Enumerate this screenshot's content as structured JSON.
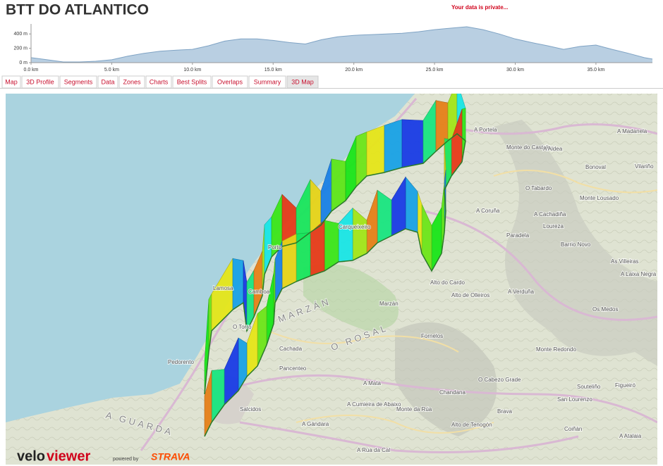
{
  "header": {
    "title": "BTT DO ATLANTICO",
    "privacy_note": "Your data is private..."
  },
  "chart_data": {
    "type": "area",
    "x": [
      0,
      1,
      2,
      3,
      4,
      5,
      6,
      7,
      8,
      9,
      10,
      11,
      12,
      13,
      14,
      15,
      16,
      17,
      18,
      19,
      20,
      21,
      22,
      23,
      24,
      25,
      26,
      27,
      28,
      29,
      30,
      31,
      32,
      33,
      34,
      35,
      36,
      37,
      38,
      38.5
    ],
    "values": [
      70,
      40,
      10,
      10,
      20,
      40,
      90,
      130,
      160,
      175,
      185,
      235,
      300,
      330,
      330,
      310,
      280,
      260,
      320,
      360,
      380,
      390,
      400,
      410,
      430,
      460,
      480,
      500,
      460,
      400,
      330,
      280,
      235,
      185,
      225,
      245,
      185,
      130,
      70,
      50
    ],
    "color": "#b9cfe2",
    "line_color": "#7fa3c4",
    "xlim": [
      0,
      38.5
    ],
    "ylim": [
      0,
      500
    ],
    "xticks": [
      {
        "value": 0,
        "label": "0.0 km"
      },
      {
        "value": 5,
        "label": "5.0 km"
      },
      {
        "value": 10,
        "label": "10.0 km"
      },
      {
        "value": 15,
        "label": "15.0 km"
      },
      {
        "value": 20,
        "label": "20.0 km"
      },
      {
        "value": 25,
        "label": "25.0 km"
      },
      {
        "value": 30,
        "label": "30.0 km"
      },
      {
        "value": 35,
        "label": "35.0 km"
      }
    ],
    "yticks": [
      {
        "value": 0,
        "label": "0 m"
      },
      {
        "value": 200,
        "label": "200 m"
      },
      {
        "value": 400,
        "label": "400 m"
      }
    ]
  },
  "tabs": [
    "Map",
    "3D Profile",
    "Segments",
    "Data",
    "Zones",
    "Charts",
    "Best Splits",
    "Overlaps",
    "Summary",
    "3D Map"
  ],
  "active_tab": 9,
  "map": {
    "labels": [
      "A Portela",
      "Monte do Castelo",
      "A Aldea",
      "A Madanela",
      "Vilariño",
      "Bonoval",
      "O Tabardo",
      "Monte Lousado",
      "A Cachadiña",
      "A Coruña",
      "Paradela",
      "Loureza",
      "Barrio Novo",
      "As Villeiras",
      "A Laixa Negra",
      "Alto do Cardo",
      "Alto de Olleiros",
      "A Verduña",
      "Os Medos",
      "Marzán",
      "Fornelos",
      "Monte Redondo",
      "Lamosa",
      "Camboa",
      "O Torro",
      "Cachada",
      "Pancenteo",
      "Pedorento",
      "A Mata",
      "A Cumieira de Abaixo",
      "A Gándara",
      "Monte da Rúa",
      "Chandana",
      "O Cabezo Grade",
      "San Lourenzo",
      "Souteliño",
      "Figueiró",
      "Brava",
      "Alto de Tenogón",
      "Coiñán",
      "A Atalaia",
      "A Rúa da Cal",
      "Salcidos",
      "Carqueixeiro",
      "Porto"
    ],
    "region_labels": [
      "MARZÁN",
      "O ROSAL",
      "A GUARDA"
    ]
  },
  "logo": {
    "velo": "velo",
    "viewer": "viewer",
    "powered_by": "powered by",
    "strava": "STRAVA"
  }
}
